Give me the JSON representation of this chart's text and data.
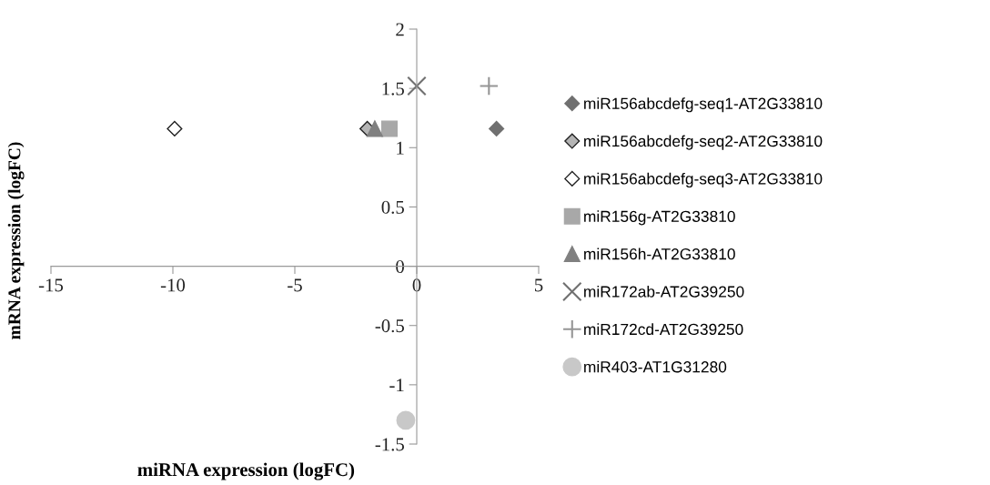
{
  "chart_data": {
    "type": "scatter",
    "xlabel": "miRNA expression (logFC)",
    "ylabel": "mRNA expression (logFC)",
    "xlim": [
      -15,
      5
    ],
    "xticks": [
      -15,
      -10,
      -5,
      0,
      5
    ],
    "ylim": [
      -1.5,
      2
    ],
    "yticks": [
      -1.5,
      -1,
      -0.5,
      0,
      0.5,
      1,
      1.5,
      2
    ],
    "grid": false,
    "legend": "right",
    "series": [
      {
        "name": "miR156abcdefg-seq1-AT2G33810",
        "color": "#707070",
        "marker": "diamond",
        "x": [
          3.27
        ],
        "values": [
          1.16
        ]
      },
      {
        "name": "miR156abcdefg-seq2-AT2G33810",
        "color": "#b4b4b4",
        "marker": "diamond",
        "x": [
          -2.03
        ],
        "values": [
          1.16
        ]
      },
      {
        "name": "miR156abcdefg-seq3-AT2G33810",
        "color": "#ffffff",
        "marker": "diamond",
        "x": [
          -9.93
        ],
        "values": [
          1.16
        ]
      },
      {
        "name": "miR156g-AT2G33810",
        "color": "#a8a8a8",
        "marker": "square",
        "x": [
          -1.12
        ],
        "values": [
          1.16
        ]
      },
      {
        "name": "miR156h-AT2G33810",
        "color": "#808080",
        "marker": "triangle",
        "x": [
          -1.72
        ],
        "values": [
          1.16
        ]
      },
      {
        "name": "miR172ab-AT2G39250",
        "color": "#707070",
        "marker": "cross",
        "x": [
          0
        ],
        "values": [
          1.52
        ]
      },
      {
        "name": "miR172cd-AT2G39250",
        "color": "#959595",
        "marker": "plus",
        "x": [
          2.96
        ],
        "values": [
          1.52
        ]
      },
      {
        "name": "miR403-AT1G31280",
        "color": "#c8c8c8",
        "marker": "circle",
        "x": [
          -0.45
        ],
        "values": [
          -1.3
        ]
      }
    ]
  }
}
